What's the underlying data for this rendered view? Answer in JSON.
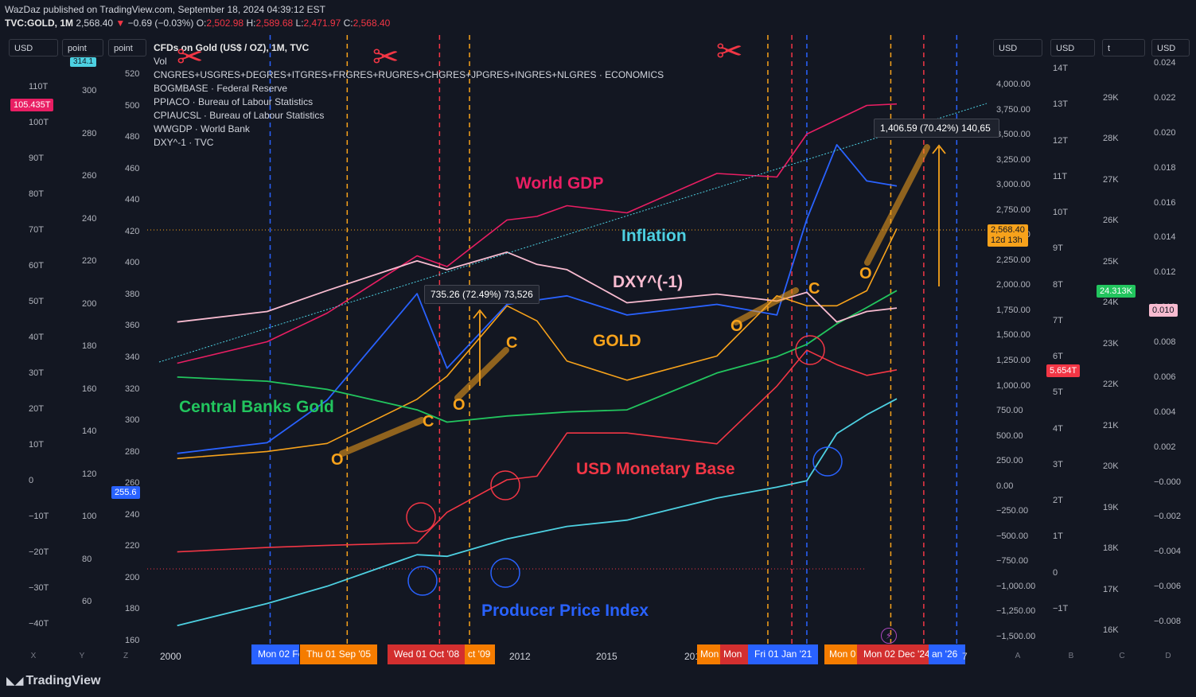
{
  "header": {
    "published": "WazDaz published on TradingView.com, September 18, 2024 04:39:12 EST",
    "symbol": "TVC:GOLD, 1M",
    "price": "2,568.40",
    "change": "−0.69 (−0.03%)",
    "o_label": "O:",
    "o": "2,502.98",
    "h_label": "H:",
    "h": "2,589.68",
    "l_label": "L:",
    "l": "2,471.97",
    "c_label": "C:",
    "c": "2,568.40"
  },
  "units": {
    "u1": "USD",
    "u2": "point",
    "u3": "point",
    "u4": "USD",
    "u5": "USD",
    "u6": "t",
    "u7": "USD"
  },
  "legend": [
    "CFDs on Gold (US$ / OZ), 1M, TVC",
    "Vol",
    "CNGRES+USGRES+DEGRES+ITGRES+FRGRES+RUGRES+CHGRES+JPGRES+INGRES+NLGRES · ECONOMICS",
    "BOGMBASE · Federal Reserve",
    "PPIACO · Bureau of Labour Statistics",
    "CPIAUCSL · Bureau of Labour Statistics",
    "WWGDP · World Bank",
    "DXY^-1 · TVC"
  ],
  "axes": {
    "left_usd": [
      "110T",
      "100T",
      "90T",
      "80T",
      "70T",
      "60T",
      "50T",
      "40T",
      "30T",
      "20T",
      "10T",
      "0",
      "−10T",
      "−20T",
      "−30T",
      "−40T"
    ],
    "left_point1": [
      "300",
      "280",
      "260",
      "240",
      "220",
      "200",
      "180",
      "160",
      "140",
      "120",
      "100",
      "80",
      "60"
    ],
    "left_point2": [
      "520",
      "500",
      "480",
      "460",
      "440",
      "420",
      "400",
      "380",
      "360",
      "340",
      "320",
      "300",
      "280",
      "260",
      "240",
      "220",
      "200",
      "180",
      "160"
    ],
    "right_gold": [
      "4,000.00",
      "3,750.00",
      "3,500.00",
      "3,250.00",
      "3,000.00",
      "2,750.00",
      "2,500.00",
      "2,250.00",
      "2,000.00",
      "1,750.00",
      "1,500.00",
      "1,250.00",
      "1,000.00",
      "750.00",
      "500.00",
      "250.00",
      "0.00",
      "−250.00",
      "−500.00",
      "−750.00",
      "−1,000.00",
      "−1,250.00",
      "−1,500.00"
    ],
    "right_usd_t": [
      "14T",
      "13T",
      "12T",
      "11T",
      "10T",
      "9T",
      "8T",
      "7T",
      "6T",
      "5T",
      "4T",
      "3T",
      "2T",
      "1T",
      "0",
      "−1T"
    ],
    "right_t": [
      "29K",
      "28K",
      "27K",
      "26K",
      "25K",
      "24K",
      "23K",
      "22K",
      "21K",
      "20K",
      "19K",
      "18K",
      "17K",
      "16K"
    ],
    "right_dxy": [
      "0.024",
      "0.022",
      "0.020",
      "0.018",
      "0.016",
      "0.014",
      "0.012",
      "0.010",
      "0.008",
      "0.006",
      "0.004",
      "0.002",
      "−0.000",
      "−0.002",
      "−0.004",
      "−0.006",
      "−0.008"
    ],
    "x_years": [
      "2000",
      "2012",
      "2015"
    ]
  },
  "tags": {
    "usd_left": "105.435T",
    "point_left": "314.1",
    "pt_left2": "255.6",
    "gold_price": "2,568.40",
    "gold_countdown": "12d 13h",
    "monetary": "5.654T",
    "cb_gold": "24.313K",
    "dxy": "0.010"
  },
  "date_badges": {
    "b1": "Mon 02 Fe",
    "b2": "Thu 01 Sep '05",
    "b3": "Wed 01 Oct '08",
    "b4": "ct '09",
    "b5": "201",
    "b6": "Mon",
    "b7": "Mon",
    "b8": "Fri 01 Jan '21",
    "b9": "Mon 0",
    "b10": "Mon 02 Dec '24",
    "b11": "an '26",
    "b12": "7"
  },
  "tooltips": {
    "t1": "735.26 (72.49%) 73,526",
    "t2": "1,406.59 (70.42%) 140,65"
  },
  "annotations": {
    "world_gdp": "World GDP",
    "inflation": "Inflation",
    "dxy": "DXY^(-1)",
    "gold": "GOLD",
    "cb_gold": "Central Banks Gold",
    "usd_mb": "USD Monetary Base",
    "ppi": "Producer Price Index",
    "o": "O",
    "c": "C"
  },
  "pane_letters": [
    "X",
    "Y",
    "Z",
    "A",
    "B",
    "C",
    "D"
  ],
  "brand": "TradingView",
  "colors": {
    "bg": "#131722",
    "gold": "#f7a21b",
    "gdp": "#e91e63",
    "inflation": "#4dd0e1",
    "dxy": "#f8bbd0",
    "cb": "#22c55e",
    "mb": "#f23645",
    "ppi": "#2962ff",
    "orange_line": "#f7a21b",
    "red_line": "#f23645",
    "blue_line": "#2962ff"
  },
  "chart_data": {
    "type": "line",
    "title": "CFDs on Gold (US$ / OZ), 1M, TVC",
    "x": [
      2000,
      2003,
      2005,
      2008,
      2009,
      2011,
      2012,
      2013,
      2015,
      2018,
      2020,
      2021,
      2022,
      2023,
      2024
    ],
    "series": [
      {
        "name": "CFDs on Gold (US$ / OZ), 1M, TVC",
        "values": [
          280,
          350,
          430,
          870,
          1100,
          1800,
          1650,
          1250,
          1060,
          1300,
          1900,
          1800,
          1800,
          1950,
          2568.4
        ]
      },
      {
        "name": "WWGDP · World Bank",
        "values": [
          33,
          39,
          47,
          63,
          60,
          73,
          74,
          77,
          75,
          86,
          85,
          97,
          101,
          105,
          105.4
        ]
      },
      {
        "name": "CPIAUCSL · Bureau of Labour Statistics",
        "values": [
          170,
          184,
          195,
          215,
          214,
          225,
          229,
          233,
          237,
          251,
          258,
          262,
          292,
          304,
          314.1
        ]
      },
      {
        "name": "BOGMBASE · Federal Reserve",
        "values": [
          0.6,
          0.72,
          0.78,
          0.85,
          1.7,
          2.6,
          2.7,
          3.9,
          3.9,
          3.6,
          5.2,
          6.2,
          5.8,
          5.5,
          5.654
        ]
      },
      {
        "name": "PPIACO · Bureau of Labour Statistics",
        "values": [
          130,
          135,
          155,
          205,
          170,
          200,
          202,
          204,
          195,
          200,
          195,
          240,
          275,
          258,
          255.6
        ]
      },
      {
        "name": "CNGRES+USGRES+DEGRES+ITGRES+FRGRES+RUGRES+CHGRES+JPGRES+INGRES+NLGRES · ECONOMICS",
        "values": [
          22200,
          22100,
          21900,
          21400,
          21100,
          21250,
          21300,
          21350,
          21400,
          22300,
          22700,
          23000,
          23500,
          23900,
          24313
        ]
      },
      {
        "name": "DXY^-1 · TVC",
        "values": [
          0.0092,
          0.0098,
          0.011,
          0.0127,
          0.0122,
          0.0132,
          0.0125,
          0.0122,
          0.0103,
          0.0108,
          0.0104,
          0.0109,
          0.0092,
          0.0098,
          0.01
        ]
      }
    ],
    "xlim": [
      1999,
      2027
    ],
    "ylim": [
      -1500,
      4250
    ]
  }
}
